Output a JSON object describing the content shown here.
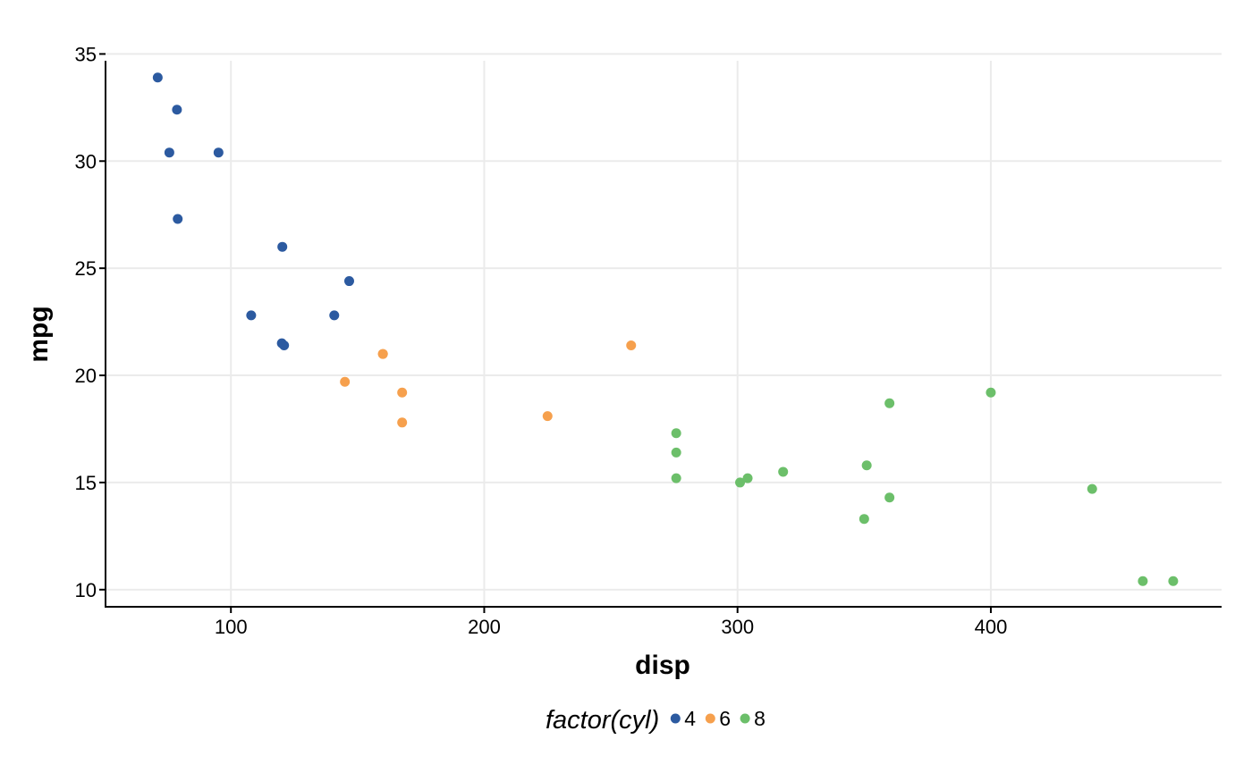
{
  "chart_data": {
    "type": "scatter",
    "title": "",
    "xlabel": "disp",
    "ylabel": "mpg",
    "xlim": [
      50.5,
      491.1
    ],
    "ylim": [
      9.2,
      35.1
    ],
    "xticks": [
      100,
      200,
      300,
      400
    ],
    "yticks": [
      10,
      15,
      20,
      25,
      30,
      35
    ],
    "grid": true,
    "legend": {
      "title": "factor(cyl)",
      "placement": "bottom"
    },
    "series": [
      {
        "name": "4",
        "color": "#2c5aa0",
        "points": [
          [
            71.1,
            33.9
          ],
          [
            78.7,
            32.4
          ],
          [
            75.7,
            30.4
          ],
          [
            95.1,
            30.4
          ],
          [
            79.0,
            27.3
          ],
          [
            120.3,
            26.0
          ],
          [
            146.7,
            24.4
          ],
          [
            108.0,
            22.8
          ],
          [
            140.8,
            22.8
          ],
          [
            120.1,
            21.5
          ],
          [
            121.0,
            21.4
          ]
        ]
      },
      {
        "name": "6",
        "color": "#f6a04d",
        "points": [
          [
            160.0,
            21.0
          ],
          [
            160.0,
            21.0
          ],
          [
            258.0,
            21.4
          ],
          [
            145.0,
            19.7
          ],
          [
            167.6,
            19.2
          ],
          [
            225.0,
            18.1
          ],
          [
            167.6,
            17.8
          ]
        ]
      },
      {
        "name": "8",
        "color": "#6cbf6a",
        "points": [
          [
            400.0,
            19.2
          ],
          [
            360.0,
            18.7
          ],
          [
            275.8,
            17.3
          ],
          [
            275.8,
            16.4
          ],
          [
            351.0,
            15.8
          ],
          [
            318.0,
            15.5
          ],
          [
            304.0,
            15.2
          ],
          [
            275.8,
            15.2
          ],
          [
            301.0,
            15.0
          ],
          [
            440.0,
            14.7
          ],
          [
            360.0,
            14.3
          ],
          [
            350.0,
            13.3
          ],
          [
            460.0,
            10.4
          ],
          [
            472.0,
            10.4
          ]
        ]
      }
    ]
  }
}
